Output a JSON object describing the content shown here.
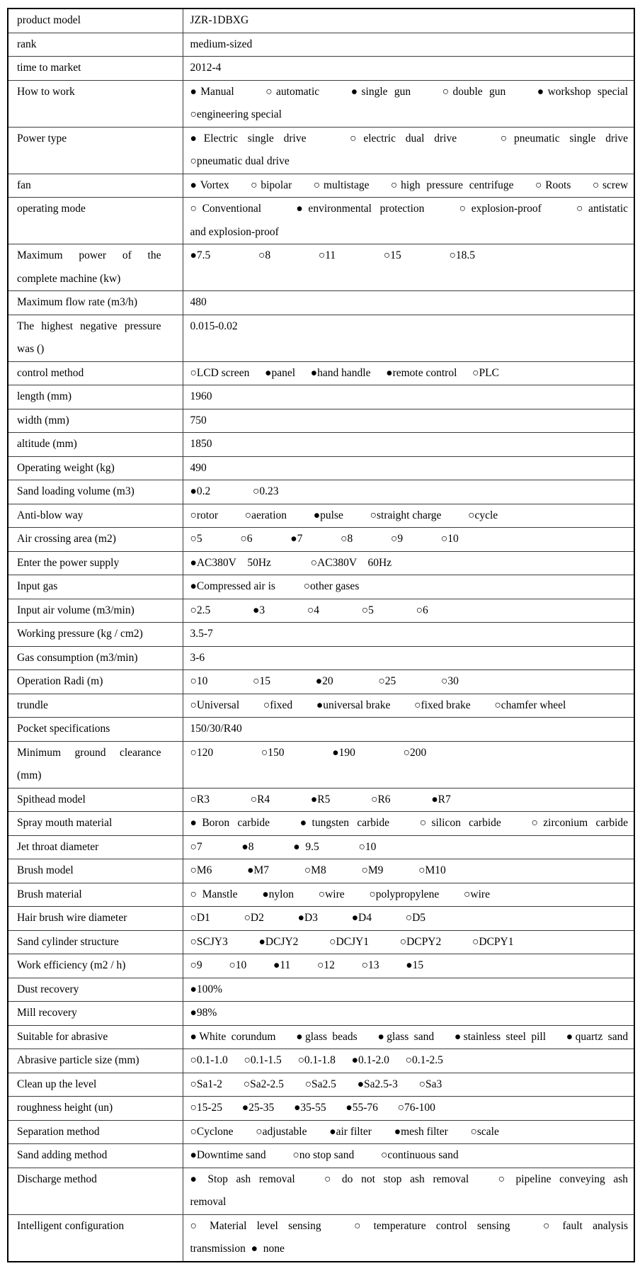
{
  "table": {
    "rows": [
      {
        "label": "product model",
        "value": "JZR-1DBXG"
      },
      {
        "label": "rank",
        "value": "medium-sized"
      },
      {
        "label": "time to market",
        "value": "2012-4"
      },
      {
        "label": "How to work",
        "gap": 26,
        "lines": [
          {
            "fill": true,
            "options": [
              "●Manual",
              "○automatic",
              "●single gun",
              "○double gun",
              "●workshop special"
            ]
          },
          {
            "fill": false,
            "options": [
              "○engineering special"
            ]
          }
        ]
      },
      {
        "label": "Power type",
        "gap": 34,
        "lines": [
          {
            "fill": true,
            "options": [
              "●Electric single drive",
              "○electric dual drive",
              "○pneumatic single drive"
            ]
          },
          {
            "fill": false,
            "options": [
              "○pneumatic dual drive"
            ]
          }
        ]
      },
      {
        "label": "fan",
        "gap": 13,
        "lines": [
          {
            "fill": true,
            "options": [
              "●Vortex",
              "○bipolar",
              "○multistage",
              "○high pressure centrifuge",
              "○Roots",
              "○screw"
            ]
          }
        ]
      },
      {
        "label": "operating mode",
        "gap": 26,
        "lines": [
          {
            "fill": true,
            "options": [
              "○Conventional",
              "●environmental protection",
              "○explosion-proof",
              "○antistatic"
            ]
          },
          {
            "fill": false,
            "options": [
              "and explosion-proof"
            ]
          }
        ]
      },
      {
        "label": "Maximum power of the complete machine (kw)",
        "gap": 60,
        "lines": [
          {
            "fill": false,
            "options": [
              "●7.5",
              "○8",
              "○11",
              "○15",
              "○18.5"
            ]
          }
        ]
      },
      {
        "label": "Maximum flow rate (m3/h)",
        "value": "480"
      },
      {
        "label": "The highest negative pressure was ()",
        "value": "0.015-0.02"
      },
      {
        "label": "control method",
        "gap": 14,
        "lines": [
          {
            "fill": false,
            "options": [
              "○LCD screen",
              "●panel",
              "●hand handle",
              "●remote control",
              "○PLC"
            ]
          }
        ]
      },
      {
        "label": "length (mm)",
        "value": "1960"
      },
      {
        "label": "width (mm)",
        "value": "750"
      },
      {
        "label": "altitude (mm)",
        "value": "1850"
      },
      {
        "label": "Operating weight (kg)",
        "value": "490"
      },
      {
        "label": "Sand loading volume (m3)",
        "gap": 52,
        "lines": [
          {
            "fill": false,
            "options": [
              "●0.2",
              "○0.23"
            ]
          }
        ]
      },
      {
        "label": "Anti-blow way",
        "gap": 30,
        "lines": [
          {
            "fill": false,
            "options": [
              "○rotor",
              "○aeration",
              "●pulse",
              "○straight charge",
              "○cycle"
            ]
          }
        ]
      },
      {
        "label": "Air crossing area (m2)",
        "gap": 46,
        "lines": [
          {
            "fill": false,
            "options": [
              "○5",
              "○6",
              "●7",
              "○8",
              "○9",
              "○10"
            ]
          }
        ]
      },
      {
        "label": "Enter the power supply",
        "gap": 48,
        "lines": [
          {
            "fill": false,
            "options": [
              "●AC380V  50Hz",
              "○AC380V  60Hz"
            ]
          }
        ]
      },
      {
        "label": "Input gas",
        "gap": 32,
        "lines": [
          {
            "fill": false,
            "options": [
              "●Compressed air is",
              "○other gases"
            ]
          }
        ]
      },
      {
        "label": "Input air volume (m3/min)",
        "gap": 52,
        "lines": [
          {
            "fill": false,
            "options": [
              "○2.5",
              "●3",
              "○4",
              "○5",
              "○6"
            ]
          }
        ]
      },
      {
        "label": "Working pressure (kg / cm2)",
        "value": "3.5-7"
      },
      {
        "label": "Gas consumption (m3/min)",
        "value": "3-6"
      },
      {
        "label": "Operation Radi (m)",
        "gap": 56,
        "lines": [
          {
            "fill": false,
            "options": [
              "○10",
              "○15",
              "●20",
              "○25",
              "○30"
            ]
          }
        ]
      },
      {
        "label": "trundle",
        "gap": 26,
        "lines": [
          {
            "fill": false,
            "options": [
              "○Universal",
              "○fixed",
              "●universal brake",
              "○fixed brake",
              "○chamfer wheel"
            ]
          }
        ]
      },
      {
        "label": "Pocket specifications",
        "value": "150/30/R40"
      },
      {
        "label": "Minimum ground clearance (mm)",
        "gap": 60,
        "lines": [
          {
            "fill": false,
            "options": [
              "○120",
              "○150",
              "●190",
              "○200"
            ]
          }
        ]
      },
      {
        "label": "Spithead model",
        "gap": 50,
        "lines": [
          {
            "fill": false,
            "options": [
              "○R3",
              "○R4",
              "●R5",
              "○R6",
              "●R7"
            ]
          }
        ]
      },
      {
        "label": "Spray mouth material",
        "gap": 20,
        "lines": [
          {
            "fill": true,
            "options": [
              "●Boron carbide",
              "●tungsten carbide",
              "○silicon carbide",
              "○zirconium carbide"
            ]
          }
        ]
      },
      {
        "label": "Jet throat diameter",
        "gap": 48,
        "lines": [
          {
            "fill": false,
            "options": [
              "○7",
              "●8",
              "● 9.5",
              "○10"
            ]
          }
        ]
      },
      {
        "label": "Brush model",
        "gap": 42,
        "lines": [
          {
            "fill": false,
            "options": [
              "○M6",
              "●M7",
              "○M8",
              "○M9",
              "○M10"
            ]
          }
        ]
      },
      {
        "label": "Brush material",
        "gap": 27,
        "lines": [
          {
            "fill": false,
            "options": [
              "○ Manstle",
              "●nylon",
              "○wire",
              "○polypropylene",
              "○wire"
            ]
          }
        ]
      },
      {
        "label": "Hair brush wire diameter",
        "gap": 40,
        "lines": [
          {
            "fill": false,
            "options": [
              "○D1",
              "○D2",
              "●D3",
              "●D4",
              "○D5"
            ]
          }
        ]
      },
      {
        "label": "Sand cylinder structure",
        "gap": 36,
        "lines": [
          {
            "fill": false,
            "options": [
              "○SCJY3",
              "●DCJY2",
              "○DCJY1",
              "○DCPY2",
              "○DCPY1"
            ]
          }
        ]
      },
      {
        "label": "Work efficiency (m2 / h)",
        "gap": 30,
        "lines": [
          {
            "fill": false,
            "options": [
              "○9",
              "○10",
              "●11",
              "○12",
              "○13",
              "●15"
            ]
          }
        ]
      },
      {
        "label": "Dust recovery",
        "gap": 20,
        "lines": [
          {
            "fill": false,
            "options": [
              "●100%"
            ]
          }
        ]
      },
      {
        "label": "Mill recovery",
        "gap": 20,
        "lines": [
          {
            "fill": false,
            "options": [
              "●98%"
            ]
          }
        ]
      },
      {
        "label": "Suitable for abrasive",
        "gap": 14,
        "lines": [
          {
            "fill": true,
            "options": [
              "●White corundum",
              "●glass beads",
              "●glass sand",
              "●stainless steel pill",
              "●quartz sand"
            ]
          }
        ]
      },
      {
        "label": "Abrasive particle size (mm)",
        "gap": 15,
        "lines": [
          {
            "fill": false,
            "options": [
              "○0.1-1.0",
              "○0.1-1.5",
              "○0.1-1.8",
              "●0.1-2.0",
              "○0.1-2.5"
            ]
          }
        ]
      },
      {
        "label": "Clean up the level",
        "gap": 22,
        "lines": [
          {
            "fill": false,
            "options": [
              "○Sa1-2",
              "○Sa2-2.5",
              "○Sa2.5",
              "●Sa2.5-3",
              "○Sa3"
            ]
          }
        ]
      },
      {
        "label": "roughness height (un)",
        "gap": 20,
        "lines": [
          {
            "fill": false,
            "options": [
              "○15-25",
              "●25-35",
              "●35-55",
              "●55-76",
              "○76-100"
            ]
          }
        ]
      },
      {
        "label": "Separation method",
        "gap": 24,
        "lines": [
          {
            "fill": false,
            "options": [
              "○Cyclone",
              "○adjustable",
              "●air filter",
              "●mesh filter",
              "○scale"
            ]
          }
        ]
      },
      {
        "label": "Sand adding method",
        "gap": 30,
        "lines": [
          {
            "fill": false,
            "options": [
              "●Downtime sand",
              "○no stop sand",
              "○continuous sand"
            ]
          }
        ]
      },
      {
        "label": "Discharge method",
        "gap": 18,
        "lines": [
          {
            "fill": true,
            "options": [
              "● Stop ash removal",
              "○ do not stop ash removal",
              "○ pipeline conveying ash"
            ]
          },
          {
            "fill": false,
            "options": [
              "removal"
            ]
          }
        ]
      },
      {
        "label": "Intelligent configuration",
        "gap": 18,
        "lines": [
          {
            "fill": true,
            "options": [
              "○ Material level sensing",
              "○ temperature control sensing",
              "○ fault analysis"
            ]
          },
          {
            "fill": false,
            "options": [
              "transmission ● none"
            ]
          }
        ]
      }
    ]
  }
}
